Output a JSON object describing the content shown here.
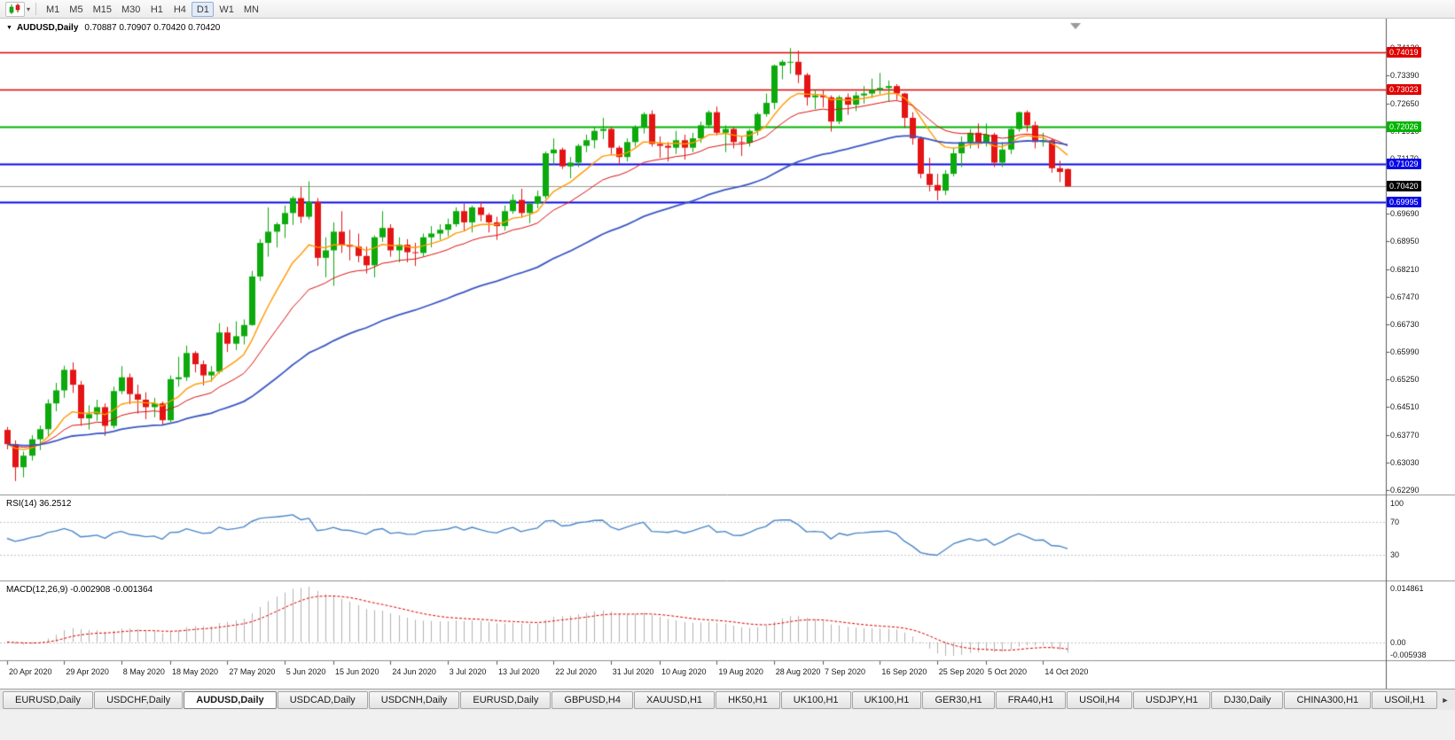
{
  "toolbar": {
    "chart_type_icon": "candlestick-chart-icon",
    "dropdown_caret": "▾",
    "timeframes": [
      "M1",
      "M5",
      "M15",
      "M30",
      "H1",
      "H4",
      "D1",
      "W1",
      "MN"
    ],
    "active_timeframe": "D1"
  },
  "chart": {
    "collapse_icon": "▼",
    "title_symbol": "AUDUSD,Daily",
    "title_ohlc": "0.70887 0.70907 0.70420 0.70420"
  },
  "chart_data": {
    "type": "candlestick",
    "symbol": "AUDUSD",
    "period": "Daily",
    "colors": {
      "up": "#0caa0c",
      "down": "#e41414",
      "background": "#ffffff",
      "axis_text": "#1a1a1a"
    },
    "y_axis": {
      "min": 0.6217,
      "max": 0.7487,
      "tick_labels": [
        "0.74130",
        "0.73390",
        "0.72650",
        "0.71910",
        "0.71170",
        "0.70430",
        "0.69690",
        "0.68950",
        "0.68210",
        "0.67470",
        "0.66730",
        "0.65990",
        "0.65250",
        "0.64510",
        "0.63770",
        "0.63030",
        "0.62290"
      ]
    },
    "x_axis": {
      "date_labels": [
        {
          "i": 0,
          "t": "20 Apr 2020"
        },
        {
          "i": 7,
          "t": "29 Apr 2020"
        },
        {
          "i": 14,
          "t": "8 May 2020"
        },
        {
          "i": 20,
          "t": "18 May 2020"
        },
        {
          "i": 27,
          "t": "27 May 2020"
        },
        {
          "i": 34,
          "t": "5 Jun 2020"
        },
        {
          "i": 40,
          "t": "15 Jun 2020"
        },
        {
          "i": 47,
          "t": "24 Jun 2020"
        },
        {
          "i": 54,
          "t": "3 Jul 2020"
        },
        {
          "i": 60,
          "t": "13 Jul 2020"
        },
        {
          "i": 67,
          "t": "22 Jul 2020"
        },
        {
          "i": 74,
          "t": "31 Jul 2020"
        },
        {
          "i": 80,
          "t": "10 Aug 2020"
        },
        {
          "i": 87,
          "t": "19 Aug 2020"
        },
        {
          "i": 94,
          "t": "28 Aug 2020"
        },
        {
          "i": 100,
          "t": "7 Sep 2020"
        },
        {
          "i": 107,
          "t": "16 Sep 2020"
        },
        {
          "i": 114,
          "t": "25 Sep 2020"
        },
        {
          "i": 120,
          "t": "5 Oct 2020"
        },
        {
          "i": 127,
          "t": "14 Oct 2020"
        }
      ]
    },
    "candles": [
      [
        0.639,
        0.6398,
        0.6338,
        0.6352
      ],
      [
        0.6352,
        0.6362,
        0.6253,
        0.629
      ],
      [
        0.629,
        0.6332,
        0.6263,
        0.6321
      ],
      [
        0.6321,
        0.6376,
        0.6308,
        0.6365
      ],
      [
        0.6365,
        0.6402,
        0.6336,
        0.6392
      ],
      [
        0.6392,
        0.6472,
        0.6372,
        0.6461
      ],
      [
        0.6461,
        0.6516,
        0.644,
        0.6496
      ],
      [
        0.6496,
        0.6562,
        0.6476,
        0.6551
      ],
      [
        0.6551,
        0.6571,
        0.6489,
        0.6511
      ],
      [
        0.6511,
        0.6521,
        0.6401,
        0.6421
      ],
      [
        0.6421,
        0.6456,
        0.6391,
        0.6432
      ],
      [
        0.6432,
        0.6471,
        0.6414,
        0.6451
      ],
      [
        0.6451,
        0.6461,
        0.6374,
        0.6401
      ],
      [
        0.6401,
        0.6506,
        0.6394,
        0.6494
      ],
      [
        0.6494,
        0.6561,
        0.6486,
        0.6531
      ],
      [
        0.6531,
        0.6541,
        0.6459,
        0.6486
      ],
      [
        0.6486,
        0.6511,
        0.6434,
        0.6471
      ],
      [
        0.6471,
        0.6491,
        0.6419,
        0.6451
      ],
      [
        0.6451,
        0.6476,
        0.6424,
        0.6461
      ],
      [
        0.6461,
        0.6466,
        0.6402,
        0.6416
      ],
      [
        0.6416,
        0.6536,
        0.6411,
        0.6526
      ],
      [
        0.6526,
        0.6586,
        0.6506,
        0.6531
      ],
      [
        0.6531,
        0.6616,
        0.6521,
        0.6596
      ],
      [
        0.6596,
        0.6601,
        0.6544,
        0.6566
      ],
      [
        0.6566,
        0.6576,
        0.6509,
        0.6536
      ],
      [
        0.6536,
        0.6561,
        0.6519,
        0.6546
      ],
      [
        0.6546,
        0.6676,
        0.6541,
        0.6651
      ],
      [
        0.6651,
        0.6666,
        0.6599,
        0.6621
      ],
      [
        0.6621,
        0.6681,
        0.6604,
        0.6641
      ],
      [
        0.6641,
        0.6686,
        0.6619,
        0.6671
      ],
      [
        0.6671,
        0.6816,
        0.6669,
        0.6801
      ],
      [
        0.6801,
        0.6901,
        0.6789,
        0.6891
      ],
      [
        0.6891,
        0.6986,
        0.6854,
        0.6921
      ],
      [
        0.6921,
        0.6946,
        0.6879,
        0.6941
      ],
      [
        0.6941,
        0.6991,
        0.6904,
        0.6971
      ],
      [
        0.6971,
        0.7016,
        0.6939,
        0.7011
      ],
      [
        0.7011,
        0.7041,
        0.6944,
        0.6961
      ],
      [
        0.6961,
        0.7056,
        0.6954,
        0.7001
      ],
      [
        0.7001,
        0.7011,
        0.6829,
        0.6851
      ],
      [
        0.6851,
        0.6906,
        0.6799,
        0.6871
      ],
      [
        0.6871,
        0.6946,
        0.6776,
        0.6921
      ],
      [
        0.6921,
        0.6976,
        0.6864,
        0.6886
      ],
      [
        0.6886,
        0.6926,
        0.6844,
        0.6881
      ],
      [
        0.6881,
        0.6916,
        0.6839,
        0.6856
      ],
      [
        0.6856,
        0.6881,
        0.6809,
        0.6831
      ],
      [
        0.6831,
        0.6911,
        0.6799,
        0.6906
      ],
      [
        0.6906,
        0.6976,
        0.6894,
        0.6931
      ],
      [
        0.6931,
        0.6941,
        0.6854,
        0.6871
      ],
      [
        0.6871,
        0.6906,
        0.6839,
        0.6886
      ],
      [
        0.6886,
        0.6901,
        0.6839,
        0.6866
      ],
      [
        0.6866,
        0.6891,
        0.6829,
        0.6864
      ],
      [
        0.6864,
        0.6916,
        0.6854,
        0.6906
      ],
      [
        0.6906,
        0.6936,
        0.6879,
        0.6916
      ],
      [
        0.6916,
        0.6941,
        0.6899,
        0.6926
      ],
      [
        0.6926,
        0.6956,
        0.6909,
        0.6941
      ],
      [
        0.6941,
        0.6986,
        0.6934,
        0.6976
      ],
      [
        0.6976,
        0.6996,
        0.6924,
        0.6946
      ],
      [
        0.6946,
        0.6991,
        0.6919,
        0.6986
      ],
      [
        0.6986,
        0.7001,
        0.6949,
        0.6966
      ],
      [
        0.6966,
        0.6971,
        0.6919,
        0.6946
      ],
      [
        0.6946,
        0.6961,
        0.6899,
        0.6936
      ],
      [
        0.6936,
        0.6991,
        0.6924,
        0.6976
      ],
      [
        0.6976,
        0.7021,
        0.6969,
        0.7006
      ],
      [
        0.7006,
        0.7036,
        0.6959,
        0.6971
      ],
      [
        0.6971,
        0.7001,
        0.6944,
        0.6996
      ],
      [
        0.6996,
        0.7031,
        0.6984,
        0.7016
      ],
      [
        0.7016,
        0.7136,
        0.7009,
        0.7131
      ],
      [
        0.7131,
        0.7171,
        0.7099,
        0.7141
      ],
      [
        0.7141,
        0.7146,
        0.7089,
        0.7096
      ],
      [
        0.7096,
        0.7121,
        0.7064,
        0.7106
      ],
      [
        0.7106,
        0.7156,
        0.7094,
        0.7151
      ],
      [
        0.7151,
        0.7181,
        0.7134,
        0.7166
      ],
      [
        0.7166,
        0.7201,
        0.7144,
        0.7191
      ],
      [
        0.7191,
        0.7226,
        0.7169,
        0.7196
      ],
      [
        0.7196,
        0.7201,
        0.7129,
        0.7146
      ],
      [
        0.7146,
        0.7151,
        0.7099,
        0.7121
      ],
      [
        0.7121,
        0.7171,
        0.7109,
        0.7161
      ],
      [
        0.7161,
        0.7206,
        0.7149,
        0.7201
      ],
      [
        0.7201,
        0.7241,
        0.7184,
        0.7236
      ],
      [
        0.7236,
        0.7246,
        0.7149,
        0.7156
      ],
      [
        0.7156,
        0.7176,
        0.7119,
        0.7151
      ],
      [
        0.7151,
        0.7161,
        0.7109,
        0.7146
      ],
      [
        0.7146,
        0.7191,
        0.7129,
        0.7166
      ],
      [
        0.7166,
        0.7181,
        0.7114,
        0.7146
      ],
      [
        0.7146,
        0.7186,
        0.7134,
        0.7171
      ],
      [
        0.7171,
        0.7216,
        0.7159,
        0.7206
      ],
      [
        0.7206,
        0.7246,
        0.7199,
        0.7241
      ],
      [
        0.7241,
        0.7256,
        0.7179,
        0.7186
      ],
      [
        0.7186,
        0.7206,
        0.7134,
        0.7196
      ],
      [
        0.7196,
        0.7201,
        0.7144,
        0.7161
      ],
      [
        0.7161,
        0.7176,
        0.7124,
        0.7159
      ],
      [
        0.7159,
        0.7196,
        0.7149,
        0.7191
      ],
      [
        0.7191,
        0.7241,
        0.7179,
        0.7236
      ],
      [
        0.7236,
        0.7291,
        0.7229,
        0.7266
      ],
      [
        0.7266,
        0.7369,
        0.7249,
        0.7366
      ],
      [
        0.7366,
        0.7381,
        0.7329,
        0.7376
      ],
      [
        0.7376,
        0.7413,
        0.7344,
        0.7376
      ],
      [
        0.7376,
        0.7406,
        0.7319,
        0.7341
      ],
      [
        0.7341,
        0.7346,
        0.7259,
        0.7281
      ],
      [
        0.7281,
        0.7301,
        0.7249,
        0.7286
      ],
      [
        0.7286,
        0.7301,
        0.7254,
        0.7281
      ],
      [
        0.7281,
        0.7286,
        0.7189,
        0.7216
      ],
      [
        0.7216,
        0.7286,
        0.7209,
        0.7281
      ],
      [
        0.7281,
        0.7291,
        0.7234,
        0.7261
      ],
      [
        0.7261,
        0.7296,
        0.7244,
        0.7286
      ],
      [
        0.7286,
        0.7311,
        0.7264,
        0.7291
      ],
      [
        0.7291,
        0.7331,
        0.7279,
        0.7301
      ],
      [
        0.7301,
        0.7346,
        0.7289,
        0.7306
      ],
      [
        0.7306,
        0.7326,
        0.7269,
        0.7311
      ],
      [
        0.7311,
        0.7316,
        0.7274,
        0.7291
      ],
      [
        0.7291,
        0.7293,
        0.7199,
        0.7226
      ],
      [
        0.7226,
        0.7241,
        0.7154,
        0.7171
      ],
      [
        0.7171,
        0.7176,
        0.7064,
        0.7076
      ],
      [
        0.7076,
        0.7119,
        0.7029,
        0.7046
      ],
      [
        0.7046,
        0.7076,
        0.7005,
        0.7031
      ],
      [
        0.7031,
        0.7086,
        0.7019,
        0.7076
      ],
      [
        0.7076,
        0.7146,
        0.7069,
        0.7131
      ],
      [
        0.7131,
        0.7176,
        0.7094,
        0.7161
      ],
      [
        0.7161,
        0.7196,
        0.7144,
        0.7186
      ],
      [
        0.7186,
        0.7211,
        0.7144,
        0.7161
      ],
      [
        0.7161,
        0.7211,
        0.7149,
        0.7181
      ],
      [
        0.7181,
        0.7186,
        0.7094,
        0.7106
      ],
      [
        0.7106,
        0.7161,
        0.7094,
        0.7141
      ],
      [
        0.7141,
        0.7201,
        0.7129,
        0.7196
      ],
      [
        0.7196,
        0.7243,
        0.7189,
        0.7241
      ],
      [
        0.7241,
        0.7246,
        0.7189,
        0.7206
      ],
      [
        0.7206,
        0.7216,
        0.7144,
        0.7161
      ],
      [
        0.7161,
        0.7186,
        0.7149,
        0.7166
      ],
      [
        0.7166,
        0.7171,
        0.7079,
        0.7091
      ],
      [
        0.7091,
        0.7111,
        0.7054,
        0.7081
      ],
      [
        0.70887,
        0.70907,
        0.7042,
        0.7042
      ]
    ],
    "horizontal_lines": [
      {
        "price": 0.74019,
        "label": "0.74019",
        "color": "#e00000",
        "width": 1.5
      },
      {
        "price": 0.73023,
        "label": "0.73023",
        "color": "#e00000",
        "width": 1.5
      },
      {
        "price": 0.72026,
        "label": "0.72026",
        "color": "#00b400",
        "width": 2
      },
      {
        "price": 0.71029,
        "label": "0.71029",
        "color": "#0808e8",
        "width": 2
      },
      {
        "price": 0.69995,
        "label": "0.69995",
        "color": "#0808e8",
        "width": 2
      }
    ],
    "current_price": {
      "value": 0.7042,
      "label": "0.70420",
      "box_color": "#000000",
      "line_color": "#9a9a9a"
    },
    "moving_averages": [
      {
        "period": 10,
        "color": "#ff9900",
        "width": 1.4
      },
      {
        "period": 20,
        "color": "#dd1111",
        "width": 1
      },
      {
        "period": 50,
        "color": "#3a57c4",
        "width": 1.8
      }
    ],
    "indicators": {
      "rsi": {
        "label": "RSI(14) 36.2512",
        "period": 14,
        "color": "#4a86c8",
        "levels": [
          "100",
          "70",
          "30"
        ],
        "level_values": [
          100,
          70,
          30
        ],
        "range": [
          0,
          100
        ]
      },
      "macd": {
        "label": "MACD(12,26,9) -0.002908 -0.001364",
        "fast": 12,
        "slow": 26,
        "signal": 9,
        "histogram_color": "#b2b2b2",
        "signal_color": "#e00000",
        "axis_labels": [
          "0.014861",
          "0.00",
          "-0.005938"
        ]
      }
    }
  },
  "tabs": {
    "items": [
      "EURUSD,Daily",
      "USDCHF,Daily",
      "AUDUSD,Daily",
      "USDCAD,Daily",
      "USDCNH,Daily",
      "EURUSD,Daily",
      "GBPUSD,H4",
      "XAUUSD,H1",
      "HK50,H1",
      "UK100,H1",
      "UK100,H1",
      "GER30,H1",
      "FRA40,H1",
      "USOil,H4",
      "USDJPY,H1",
      "DJ30,Daily",
      "CHINA300,H1",
      "USOil,H1"
    ],
    "active_index": 2,
    "scroll_right_icon": "►"
  }
}
